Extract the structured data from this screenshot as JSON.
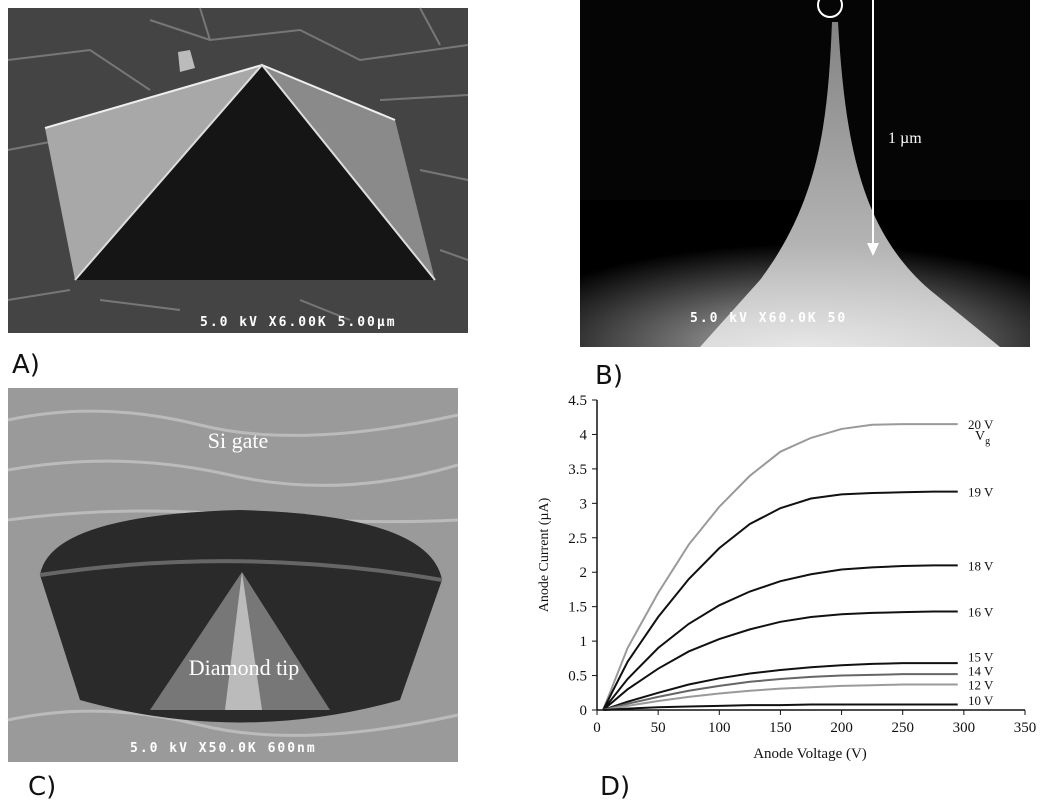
{
  "panels": [
    {
      "label": "A)",
      "scale_bar": "5.0 kV X6.00K 5.00µm"
    },
    {
      "label": "B)",
      "scale_bar": "5.0 kV X60.0K 50",
      "annotation": "1 µm"
    },
    {
      "label": "C)",
      "scale_bar": "5.0 kV X50.0K 600nm",
      "annotations": [
        "Si gate",
        "Diamond tip"
      ]
    },
    {
      "label": "D)"
    }
  ],
  "chart_data": {
    "type": "line",
    "x_label": "Anode Voltage (V)",
    "y_label": "Anode Current (µA)",
    "legend_title": {
      "main": "V",
      "sub": "g"
    },
    "x": [
      5,
      25,
      50,
      75,
      100,
      125,
      150,
      175,
      200,
      225,
      250,
      275,
      295
    ],
    "series": [
      {
        "name": "20 V",
        "color": "#9a9a9a",
        "values": [
          0,
          0.9,
          1.7,
          2.4,
          2.95,
          3.4,
          3.75,
          3.95,
          4.08,
          4.14,
          4.15,
          4.15,
          4.15
        ]
      },
      {
        "name": "19 V",
        "color": "#111111",
        "values": [
          0,
          0.7,
          1.35,
          1.9,
          2.35,
          2.7,
          2.93,
          3.07,
          3.13,
          3.15,
          3.16,
          3.17,
          3.17
        ]
      },
      {
        "name": "18 V",
        "color": "#111111",
        "values": [
          0,
          0.45,
          0.9,
          1.25,
          1.52,
          1.72,
          1.87,
          1.97,
          2.04,
          2.07,
          2.09,
          2.1,
          2.1
        ]
      },
      {
        "name": "16 V",
        "color": "#111111",
        "values": [
          0,
          0.3,
          0.6,
          0.85,
          1.03,
          1.17,
          1.28,
          1.35,
          1.39,
          1.41,
          1.42,
          1.43,
          1.43
        ]
      },
      {
        "name": "15 V",
        "color": "#111111",
        "values": [
          0,
          0.12,
          0.25,
          0.37,
          0.46,
          0.53,
          0.58,
          0.62,
          0.65,
          0.67,
          0.68,
          0.68,
          0.68
        ]
      },
      {
        "name": "14 V",
        "color": "#666666",
        "values": [
          0,
          0.09,
          0.19,
          0.28,
          0.35,
          0.41,
          0.45,
          0.48,
          0.5,
          0.51,
          0.52,
          0.52,
          0.52
        ]
      },
      {
        "name": "12 V",
        "color": "#9a9a9a",
        "values": [
          0,
          0.06,
          0.13,
          0.19,
          0.24,
          0.28,
          0.31,
          0.33,
          0.35,
          0.36,
          0.37,
          0.37,
          0.37
        ]
      },
      {
        "name": "10 V",
        "color": "#111111",
        "values": [
          0,
          0.02,
          0.04,
          0.05,
          0.06,
          0.07,
          0.07,
          0.08,
          0.08,
          0.08,
          0.08,
          0.08,
          0.08
        ]
      }
    ],
    "xlim": [
      0,
      350
    ],
    "xticks": [
      0,
      50,
      100,
      150,
      200,
      250,
      300,
      350
    ],
    "ylim": [
      0,
      4.5
    ],
    "yticks": [
      0,
      0.5,
      1,
      1.5,
      2,
      2.5,
      3,
      3.5,
      4,
      4.5
    ]
  }
}
